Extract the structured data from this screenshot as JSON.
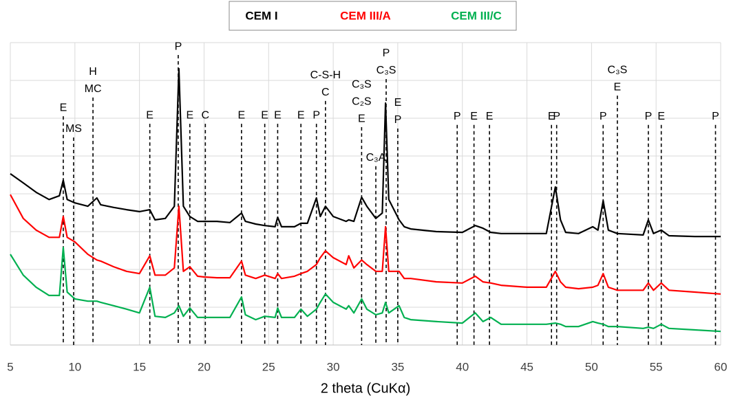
{
  "chart_data": {
    "type": "line",
    "x_label": "2 theta (CuKα)",
    "legend": "top",
    "grid": true,
    "xlim": [
      5,
      60
    ],
    "xticks": [
      5,
      10,
      15,
      20,
      25,
      30,
      35,
      40,
      45,
      50,
      55,
      60
    ],
    "ylim": [
      0,
      8
    ],
    "yticks": [
      0,
      1,
      2,
      3,
      4,
      5,
      6,
      7,
      8
    ],
    "x": [
      5,
      6,
      7,
      8,
      8.8,
      9.1,
      9.4,
      10,
      11,
      11.7,
      12,
      13,
      14,
      15,
      15.8,
      16.2,
      17,
      17.7,
      18.05,
      18.4,
      18.9,
      19.5,
      20,
      21,
      22,
      22.9,
      23.2,
      24,
      24.7,
      25.5,
      25.7,
      26,
      27,
      27.5,
      28,
      28.7,
      29.0,
      29.4,
      30,
      31,
      31.2,
      31.6,
      32.2,
      32.6,
      33.3,
      33.8,
      34.05,
      34.3,
      35.1,
      35.5,
      36,
      38,
      40,
      41,
      41.6,
      42.2,
      43,
      45,
      46.5,
      47.2,
      47.6,
      48,
      49,
      50.1,
      50.5,
      50.9,
      51.3,
      52,
      54,
      54.4,
      54.8,
      55.4,
      56,
      58,
      60
    ],
    "series": [
      {
        "name": "CEM I",
        "color": "#000000",
        "values": [
          4.53,
          4.29,
          4.04,
          3.85,
          3.95,
          4.36,
          3.85,
          3.76,
          3.67,
          3.89,
          3.71,
          3.64,
          3.58,
          3.53,
          3.58,
          3.31,
          3.35,
          3.67,
          7.31,
          3.67,
          3.4,
          3.27,
          3.27,
          3.27,
          3.24,
          3.49,
          3.27,
          3.2,
          3.16,
          3.13,
          3.38,
          3.13,
          3.13,
          3.22,
          3.22,
          3.89,
          3.4,
          3.67,
          3.4,
          3.27,
          3.31,
          3.27,
          3.91,
          3.67,
          3.35,
          3.49,
          6.4,
          3.85,
          3.31,
          3.13,
          3.07,
          3.0,
          2.98,
          3.16,
          3.09,
          2.98,
          2.95,
          2.95,
          2.95,
          4.18,
          3.31,
          2.98,
          2.95,
          3.13,
          3.04,
          3.82,
          3.04,
          2.95,
          2.91,
          3.31,
          2.95,
          3.04,
          2.89,
          2.87,
          2.87
        ]
      },
      {
        "name": "CEM III/A",
        "color": "#ff0000",
        "values": [
          3.98,
          3.35,
          3.04,
          2.85,
          2.85,
          3.4,
          2.85,
          2.73,
          2.4,
          2.25,
          2.22,
          2.07,
          1.95,
          1.89,
          2.36,
          1.85,
          1.85,
          2.04,
          3.67,
          1.95,
          2.07,
          1.82,
          1.8,
          1.78,
          1.78,
          2.22,
          1.85,
          1.76,
          1.85,
          1.76,
          1.89,
          1.76,
          1.82,
          1.89,
          1.95,
          2.13,
          2.31,
          2.49,
          2.31,
          2.13,
          2.36,
          2.04,
          2.25,
          2.13,
          1.95,
          1.95,
          3.13,
          1.95,
          1.95,
          1.76,
          1.76,
          1.67,
          1.64,
          1.82,
          1.67,
          1.64,
          1.58,
          1.53,
          1.53,
          1.95,
          1.67,
          1.53,
          1.49,
          1.53,
          1.58,
          1.89,
          1.53,
          1.45,
          1.45,
          1.64,
          1.45,
          1.64,
          1.45,
          1.4,
          1.35
        ]
      },
      {
        "name": "CEM III/C",
        "color": "#00b050",
        "values": [
          2.4,
          1.85,
          1.53,
          1.31,
          1.31,
          2.58,
          1.4,
          1.22,
          1.16,
          1.16,
          1.13,
          1.04,
          0.95,
          0.85,
          1.53,
          0.76,
          0.73,
          0.85,
          1.04,
          0.76,
          0.98,
          0.73,
          0.73,
          0.73,
          0.73,
          1.27,
          0.8,
          0.67,
          0.76,
          0.73,
          0.98,
          0.73,
          0.73,
          0.95,
          0.76,
          0.95,
          1.13,
          1.35,
          1.13,
          0.95,
          1.04,
          0.85,
          1.22,
          0.95,
          0.8,
          0.85,
          1.13,
          0.85,
          1.04,
          0.73,
          0.67,
          0.62,
          0.58,
          0.85,
          0.62,
          0.73,
          0.55,
          0.55,
          0.55,
          0.58,
          0.55,
          0.49,
          0.49,
          0.62,
          0.58,
          0.55,
          0.49,
          0.49,
          0.44,
          0.47,
          0.44,
          0.55,
          0.44,
          0.4,
          0.36
        ]
      }
    ],
    "annotations": [
      {
        "x": 9.1,
        "y": 6.27,
        "labels": [
          "E"
        ]
      },
      {
        "x": 9.9,
        "y": 5.71,
        "labels": [
          "MS"
        ]
      },
      {
        "x": 11.4,
        "y": 7.22,
        "labels": [
          "H",
          "MC"
        ]
      },
      {
        "x": 15.8,
        "y": 6.07,
        "labels": [
          "E"
        ]
      },
      {
        "x": 18.0,
        "y": 7.89,
        "labels": [
          "P"
        ]
      },
      {
        "x": 18.9,
        "y": 6.07,
        "labels": [
          "E"
        ]
      },
      {
        "x": 20.1,
        "y": 6.07,
        "labels": [
          "C"
        ]
      },
      {
        "x": 22.9,
        "y": 6.07,
        "labels": [
          "E"
        ]
      },
      {
        "x": 24.7,
        "y": 6.07,
        "labels": [
          "E"
        ]
      },
      {
        "x": 25.7,
        "y": 6.07,
        "labels": [
          "E"
        ]
      },
      {
        "x": 27.5,
        "y": 6.07,
        "labels": [
          "E"
        ]
      },
      {
        "x": 28.7,
        "y": 6.07,
        "labels": [
          "P"
        ]
      },
      {
        "x": 29.4,
        "y": 7.13,
        "labels": [
          "C-S-H",
          "C"
        ]
      },
      {
        "x": 32.2,
        "y": 6.89,
        "labels": [
          "C₃S",
          "C₂S",
          "E"
        ]
      },
      {
        "x": 33.3,
        "y": 4.95,
        "labels": [
          "C₃A"
        ]
      },
      {
        "x": 34.1,
        "y": 7.71,
        "labels": [
          "P",
          "C₃S"
        ]
      },
      {
        "x": 35.0,
        "y": 6.4,
        "labels": [
          "E",
          "P"
        ]
      },
      {
        "x": 39.6,
        "y": 6.04,
        "labels": [
          "P"
        ]
      },
      {
        "x": 40.9,
        "y": 6.04,
        "labels": [
          "E"
        ]
      },
      {
        "x": 42.1,
        "y": 6.04,
        "labels": [
          "E"
        ]
      },
      {
        "x": 46.9,
        "y": 6.04,
        "labels": [
          "E"
        ]
      },
      {
        "x": 47.3,
        "y": 6.04,
        "labels": [
          "P"
        ]
      },
      {
        "x": 50.9,
        "y": 6.04,
        "labels": [
          "P"
        ]
      },
      {
        "x": 52.0,
        "y": 7.27,
        "labels": [
          "C₃S",
          "E"
        ]
      },
      {
        "x": 54.4,
        "y": 6.04,
        "labels": [
          "P"
        ]
      },
      {
        "x": 55.4,
        "y": 6.04,
        "labels": [
          "E"
        ]
      },
      {
        "x": 59.6,
        "y": 6.04,
        "labels": [
          "P"
        ]
      }
    ]
  }
}
